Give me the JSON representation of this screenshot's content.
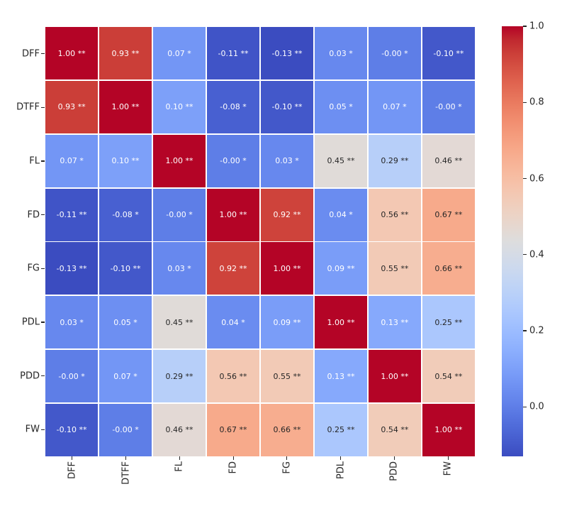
{
  "figure": {
    "background": "#ffffff",
    "tick_text_color": "#262626",
    "annot_dark_text_color": "#262626",
    "annot_light_text_color": "#ffffff",
    "grid_line_color": "#ffffff"
  },
  "chart_data": {
    "type": "heatmap",
    "title": "",
    "xlabel": "",
    "ylabel": "",
    "categories": [
      "DFF",
      "DTFF",
      "FL",
      "FD",
      "FG",
      "PDL",
      "PDD",
      "FW"
    ],
    "values": [
      [
        1.0,
        0.93,
        0.07,
        -0.11,
        -0.13,
        0.03,
        -0.0,
        -0.1
      ],
      [
        0.93,
        1.0,
        0.1,
        -0.08,
        -0.1,
        0.05,
        0.07,
        -0.0
      ],
      [
        0.07,
        0.1,
        1.0,
        -0.0,
        0.03,
        0.45,
        0.29,
        0.46
      ],
      [
        -0.11,
        -0.08,
        -0.0,
        1.0,
        0.92,
        0.04,
        0.56,
        0.67
      ],
      [
        -0.13,
        -0.1,
        0.03,
        0.92,
        1.0,
        0.09,
        0.55,
        0.66
      ],
      [
        0.03,
        0.05,
        0.45,
        0.04,
        0.09,
        1.0,
        0.13,
        0.25
      ],
      [
        -0.0,
        0.07,
        0.29,
        0.56,
        0.55,
        0.13,
        1.0,
        0.54
      ],
      [
        -0.1,
        -0.0,
        0.46,
        0.67,
        0.66,
        0.25,
        0.54,
        1.0
      ]
    ],
    "annotations": [
      [
        "1.00 **",
        "0.93 **",
        "0.07 *",
        "-0.11 **",
        "-0.13 **",
        "0.03 *",
        "-0.00 *",
        "-0.10 **"
      ],
      [
        "0.93 **",
        "1.00 **",
        "0.10 **",
        "-0.08 *",
        "-0.10 **",
        "0.05 *",
        "0.07 *",
        "-0.00 *"
      ],
      [
        "0.07 *",
        "0.10 **",
        "1.00 **",
        "-0.00 *",
        "0.03 *",
        "0.45 **",
        "0.29 **",
        "0.46 **"
      ],
      [
        "-0.11 **",
        "-0.08 *",
        "-0.00 *",
        "1.00 **",
        "0.92 **",
        "0.04 *",
        "0.56 **",
        "0.67 **"
      ],
      [
        "-0.13 **",
        "-0.10 **",
        "0.03 *",
        "0.92 **",
        "1.00 **",
        "0.09 **",
        "0.55 **",
        "0.66 **"
      ],
      [
        "0.03 *",
        "0.05 *",
        "0.45 **",
        "0.04 *",
        "0.09 **",
        "1.00 **",
        "0.13 **",
        "0.25 **"
      ],
      [
        "-0.00 *",
        "0.07 *",
        "0.29 **",
        "0.56 **",
        "0.55 **",
        "0.13 **",
        "1.00 **",
        "0.54 **"
      ],
      [
        "-0.10 **",
        "-0.00 *",
        "0.46 **",
        "0.67 **",
        "0.66 **",
        "0.25 **",
        "0.54 **",
        "1.00 **"
      ]
    ],
    "colormap": {
      "name": "coolwarm",
      "vmin": -0.13,
      "vmax": 1.0,
      "stops": [
        "#3b4cc0",
        "#445acc",
        "#4d68d7",
        "#5775e1",
        "#6282ea",
        "#6c8ef1",
        "#779af7",
        "#82a5fb",
        "#8db0fe",
        "#98b9ff",
        "#a3c2ff",
        "#aec9fd",
        "#b8d0f9",
        "#c2d5f4",
        "#ccd9ee",
        "#d5dbe6",
        "#dddddd",
        "#e5d8d1",
        "#ecd3c5",
        "#f1ccb9",
        "#f5c4ad",
        "#f7bba0",
        "#f7b194",
        "#f7a687",
        "#f49a7b",
        "#f18d6f",
        "#ec7f63",
        "#e57058",
        "#de604d",
        "#d55042",
        "#cb3e38",
        "#c0282f",
        "#b40426"
      ]
    },
    "colorbar": {
      "position": "right",
      "ticks": [
        {
          "value": 1.0,
          "label": "1.0"
        },
        {
          "value": 0.8,
          "label": "0.8"
        },
        {
          "value": 0.6,
          "label": "0.6"
        },
        {
          "value": 0.4,
          "label": "0.4"
        },
        {
          "value": 0.2,
          "label": "0.2"
        },
        {
          "value": 0.0,
          "label": "0.0"
        }
      ]
    },
    "grid": false,
    "legend_position": "right-colorbar"
  }
}
